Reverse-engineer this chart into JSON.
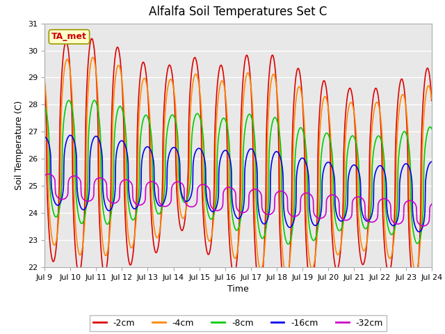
{
  "title": "Alfalfa Soil Temperatures Set C",
  "xlabel": "Time",
  "ylabel": "Soil Temperature (C)",
  "ylim": [
    22.0,
    31.0
  ],
  "yticks": [
    22.0,
    23.0,
    24.0,
    25.0,
    26.0,
    27.0,
    28.0,
    29.0,
    30.0,
    31.0
  ],
  "xtick_dates": [
    "Jul 9",
    "Jul 10",
    "Jul 11",
    "Jul 12",
    "Jul 13",
    "Jul 14",
    "Jul 15",
    "Jul 16",
    "Jul 17",
    "Jul 18",
    "Jul 19",
    "Jul 20",
    "Jul 21",
    "Jul 22",
    "Jul 23",
    "Jul 24"
  ],
  "series": {
    "-2cm": {
      "color": "#dd0000",
      "lw": 1.2
    },
    "-4cm": {
      "color": "#ff8800",
      "lw": 1.2
    },
    "-8cm": {
      "color": "#00cc00",
      "lw": 1.2
    },
    "-16cm": {
      "color": "#0000ee",
      "lw": 1.2
    },
    "-32cm": {
      "color": "#cc00cc",
      "lw": 1.2
    }
  },
  "legend_label": "TA_met",
  "legend_bg": "#ffffcc",
  "legend_edge": "#999900",
  "plot_bg": "#e8e8e8",
  "fig_bg": "#ffffff",
  "title_fontsize": 12,
  "axis_fontsize": 9,
  "tick_fontsize": 8
}
